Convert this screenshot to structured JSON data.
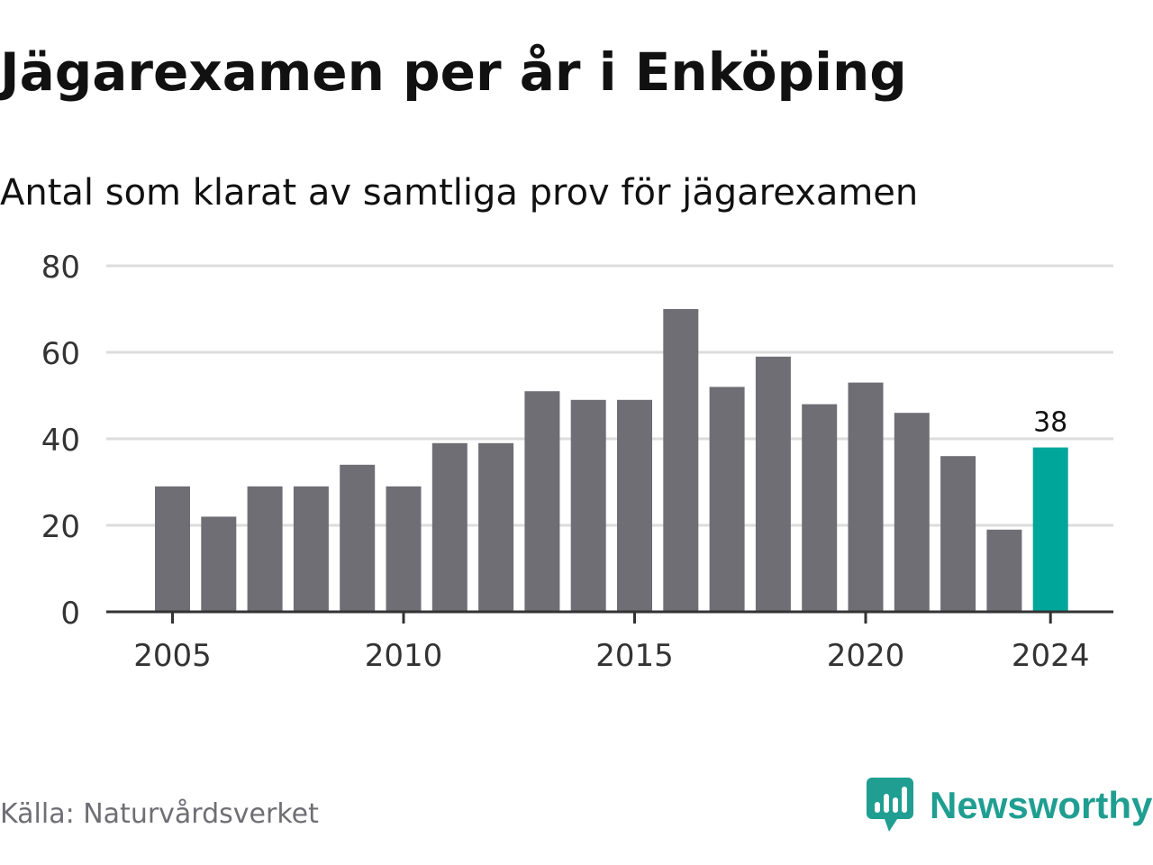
{
  "header": {
    "title": "Jägarexamen per år i Enköping",
    "subtitle": "Antal som klarat av samtliga prov för jägarexamen"
  },
  "footer": {
    "source": "Källa: Naturvårdsverket",
    "brand": "Newsworthy",
    "brand_icon": "bar-chart-speech-bubble-icon"
  },
  "colors": {
    "bar": "#6f6e74",
    "highlight": "#00a69a",
    "grid": "#dcdcdc",
    "axis": "#333333",
    "brand": "#1f9e91"
  },
  "chart_data": {
    "type": "bar",
    "x": [
      2005,
      2006,
      2007,
      2008,
      2009,
      2010,
      2011,
      2012,
      2013,
      2014,
      2015,
      2016,
      2017,
      2018,
      2019,
      2020,
      2021,
      2022,
      2023,
      2024
    ],
    "values": [
      29,
      22,
      29,
      29,
      34,
      29,
      39,
      39,
      51,
      49,
      49,
      70,
      52,
      59,
      48,
      53,
      46,
      36,
      19,
      38
    ],
    "highlight_x": 2024,
    "highlight_label": "38",
    "x_tick_labels": [
      "2005",
      "2010",
      "2015",
      "2020",
      "2024"
    ],
    "y_tick_labels": [
      "0",
      "20",
      "40",
      "60",
      "80"
    ],
    "ylim": [
      0,
      80
    ],
    "grid": true
  }
}
